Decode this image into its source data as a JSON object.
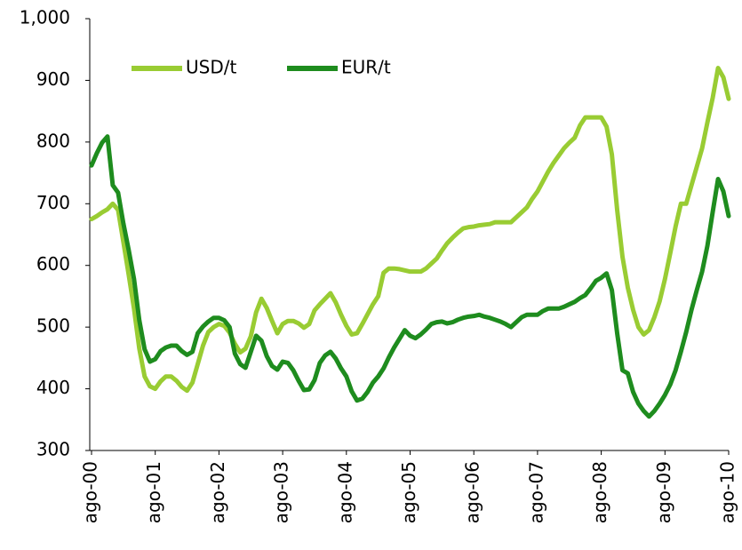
{
  "chart_data": {
    "type": "line",
    "categories": [
      "ago-00",
      null,
      null,
      null,
      null,
      null,
      null,
      null,
      null,
      null,
      null,
      null,
      "ago-01",
      null,
      null,
      null,
      null,
      null,
      null,
      null,
      null,
      null,
      null,
      null,
      "ago-02",
      null,
      null,
      null,
      null,
      null,
      null,
      null,
      null,
      null,
      null,
      null,
      "ago-03",
      null,
      null,
      null,
      null,
      null,
      null,
      null,
      null,
      null,
      null,
      null,
      "ago-04",
      null,
      null,
      null,
      null,
      null,
      null,
      null,
      null,
      null,
      null,
      null,
      "ago-05",
      null,
      null,
      null,
      null,
      null,
      null,
      null,
      null,
      null,
      null,
      null,
      "ago-06",
      null,
      null,
      null,
      null,
      null,
      null,
      null,
      null,
      null,
      null,
      null,
      "ago-07",
      null,
      null,
      null,
      null,
      null,
      null,
      null,
      null,
      null,
      null,
      null,
      "ago-08",
      null,
      null,
      null,
      null,
      null,
      null,
      null,
      null,
      null,
      null,
      null,
      "ago-09",
      null,
      null,
      null,
      null,
      null,
      null,
      null,
      null,
      null,
      null,
      null,
      "ago-10"
    ],
    "series": [
      {
        "name": "USD/t",
        "color": "#99cc33",
        "values": [
          675,
          680,
          686,
          691,
          700,
          690,
          638,
          585,
          530,
          465,
          420,
          404,
          400,
          412,
          420,
          420,
          413,
          403,
          397,
          410,
          440,
          470,
          492,
          500,
          505,
          502,
          491,
          473,
          459,
          465,
          485,
          524,
          546,
          531,
          510,
          490,
          505,
          510,
          510,
          506,
          499,
          505,
          527,
          537,
          546,
          555,
          540,
          520,
          502,
          488,
          490,
          505,
          521,
          537,
          550,
          588,
          595,
          595,
          594,
          592,
          590,
          590,
          590,
          595,
          603,
          611,
          624,
          636,
          645,
          653,
          660,
          662,
          663,
          665,
          666,
          667,
          670,
          670,
          670,
          670,
          678,
          686,
          694,
          708,
          720,
          736,
          752,
          766,
          778,
          790,
          799,
          807,
          827,
          840,
          840,
          840,
          840,
          825,
          780,
          690,
          614,
          564,
          528,
          500,
          488,
          495,
          516,
          542,
          578,
          620,
          663,
          700,
          700,
          730,
          760,
          790,
          832,
          872,
          920,
          905,
          870
        ]
      },
      {
        "name": "EUR/t",
        "color": "#1e8c1e",
        "values": [
          762,
          782,
          799,
          809,
          730,
          718,
          668,
          625,
          578,
          511,
          464,
          444,
          448,
          461,
          467,
          470,
          470,
          461,
          455,
          460,
          490,
          501,
          509,
          515,
          515,
          511,
          500,
          457,
          440,
          434,
          460,
          486,
          478,
          453,
          437,
          431,
          444,
          442,
          430,
          413,
          398,
          399,
          414,
          442,
          454,
          460,
          449,
          433,
          420,
          396,
          381,
          384,
          395,
          410,
          420,
          433,
          451,
          467,
          481,
          495,
          486,
          482,
          488,
          496,
          505,
          508,
          509,
          506,
          508,
          512,
          515,
          517,
          518,
          520,
          517,
          515,
          512,
          509,
          505,
          500,
          508,
          516,
          520,
          520,
          520,
          526,
          530,
          530,
          530,
          533,
          537,
          541,
          547,
          552,
          563,
          575,
          580,
          587,
          560,
          490,
          430,
          425,
          395,
          376,
          364,
          355,
          364,
          376,
          390,
          407,
          430,
          460,
          492,
          528,
          560,
          590,
          632,
          687,
          740,
          720,
          680
        ]
      }
    ],
    "ylim": [
      300,
      1000
    ],
    "yticks": [
      300,
      400,
      500,
      600,
      700,
      800,
      900,
      {
        "value": 1000,
        "label": "1,000"
      }
    ],
    "grid": false,
    "legend": "upper-left"
  }
}
